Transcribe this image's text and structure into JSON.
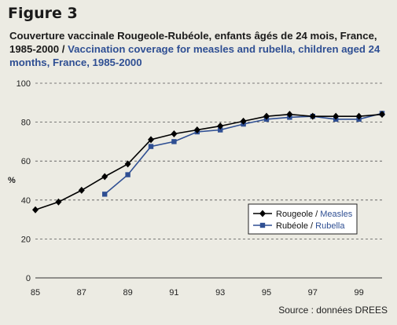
{
  "figure_label": "Figure 3",
  "title_fr": "Couverture vaccinale Rougeole-Rubéole, enfants âgés de 24 mois, France, 1985-2000",
  "title_separator": " / ",
  "title_en": "Vaccination coverage for measles and rubella, children aged 24 months, France, 1985-2000",
  "source": "Source : données DREES",
  "colors": {
    "measles": "#000000",
    "rubella": "#2f4f93",
    "grid": "#555555",
    "background": "#ecebe3"
  },
  "chart_data": {
    "type": "line",
    "xlabel": "",
    "ylabel": "%",
    "xlim": [
      85,
      100
    ],
    "ylim": [
      0,
      100
    ],
    "x_ticks": [
      "85",
      "87",
      "89",
      "91",
      "93",
      "95",
      "97",
      "99"
    ],
    "y_ticks": [
      "0",
      "20",
      "40",
      "60",
      "80",
      "100"
    ],
    "grid": "horizontal dashed",
    "legend_placement": "middle-right",
    "legend": [
      {
        "fr": "Rougeole",
        "sep": " / ",
        "en": "Measles"
      },
      {
        "fr": "Rubéole",
        "sep": " / ",
        "en": "Rubella"
      }
    ],
    "series": [
      {
        "name": "Rougeole / Measles",
        "marker": "diamond",
        "x": [
          85,
          86,
          87,
          88,
          89,
          90,
          91,
          92,
          93,
          94,
          95,
          96,
          97,
          98,
          99,
          100
        ],
        "values": [
          35,
          39,
          45,
          52,
          58.5,
          71,
          74,
          76,
          78,
          80.5,
          83,
          84,
          83,
          83,
          83,
          84
        ]
      },
      {
        "name": "Rubéole / Rubella",
        "marker": "square",
        "x": [
          88,
          89,
          90,
          91,
          92,
          93,
          94,
          95,
          96,
          97,
          98,
          99,
          100
        ],
        "values": [
          43,
          53,
          67.5,
          70,
          75,
          76,
          79,
          81.5,
          82.5,
          83,
          81.5,
          81.5,
          84.5
        ]
      }
    ]
  }
}
